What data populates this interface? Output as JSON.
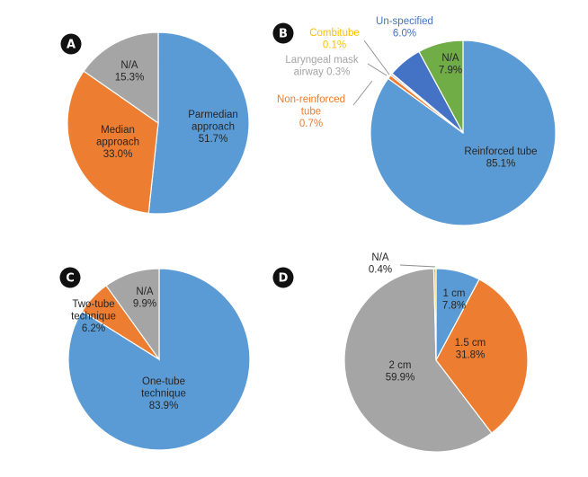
{
  "colors": {
    "blue": "#5B9BD5",
    "orange": "#ED7D31",
    "gray": "#A5A5A5",
    "yellow": "#FFC000",
    "green": "#70AD47",
    "darkblue": "#4472C4",
    "label_dark": "#262626",
    "leader": "#8c8c8c"
  },
  "chart_data": [
    {
      "type": "pie",
      "panel": "A",
      "slices": [
        {
          "label": [
            "Parmedian",
            "approach"
          ],
          "pct": "51.7%",
          "value": 51.7,
          "color": "blue"
        },
        {
          "label": [
            "Median",
            "approach"
          ],
          "pct": "33.0%",
          "value": 33.0,
          "color": "orange"
        },
        {
          "label": [
            "N/A"
          ],
          "pct": "15.3%",
          "value": 15.3,
          "color": "gray"
        }
      ]
    },
    {
      "type": "pie",
      "panel": "B",
      "slices": [
        {
          "label": [
            "Reinforced tube"
          ],
          "pct": "85.1%",
          "value": 85.1,
          "color": "blue"
        },
        {
          "label": [
            "Non-reinforced",
            "tube"
          ],
          "pct": "0.7%",
          "value": 0.7,
          "color": "orange"
        },
        {
          "label": [
            "Laryngeal mask",
            "airway 0.3%"
          ],
          "pct": "",
          "value": 0.3,
          "color": "gray"
        },
        {
          "label": [
            "Combitube"
          ],
          "pct": "0.1%",
          "value": 0.1,
          "color": "yellow"
        },
        {
          "label": [
            "Un-specified"
          ],
          "pct": "6.0%",
          "value": 6.0,
          "color": "darkblue"
        },
        {
          "label": [
            "N/A"
          ],
          "pct": "7.9%",
          "value": 7.9,
          "color": "green"
        }
      ]
    },
    {
      "type": "pie",
      "panel": "C",
      "slices": [
        {
          "label": [
            "One-tube",
            "technique"
          ],
          "pct": "83.9%",
          "value": 83.9,
          "color": "blue"
        },
        {
          "label": [
            "Two-tube",
            "technique"
          ],
          "pct": "6.2%",
          "value": 6.2,
          "color": "orange"
        },
        {
          "label": [
            "N/A"
          ],
          "pct": "9.9%",
          "value": 9.9,
          "color": "gray"
        }
      ]
    },
    {
      "type": "pie",
      "panel": "D",
      "slices": [
        {
          "label": [
            "1 cm"
          ],
          "pct": "7.8%",
          "value": 7.8,
          "color": "blue"
        },
        {
          "label": [
            "1.5 cm"
          ],
          "pct": "31.8%",
          "value": 31.8,
          "color": "orange"
        },
        {
          "label": [
            "2 cm"
          ],
          "pct": "59.9%",
          "value": 59.9,
          "color": "gray"
        },
        {
          "label": [
            "N/A"
          ],
          "pct": "0.4%",
          "value": 0.4,
          "color": "yellow"
        }
      ]
    }
  ]
}
